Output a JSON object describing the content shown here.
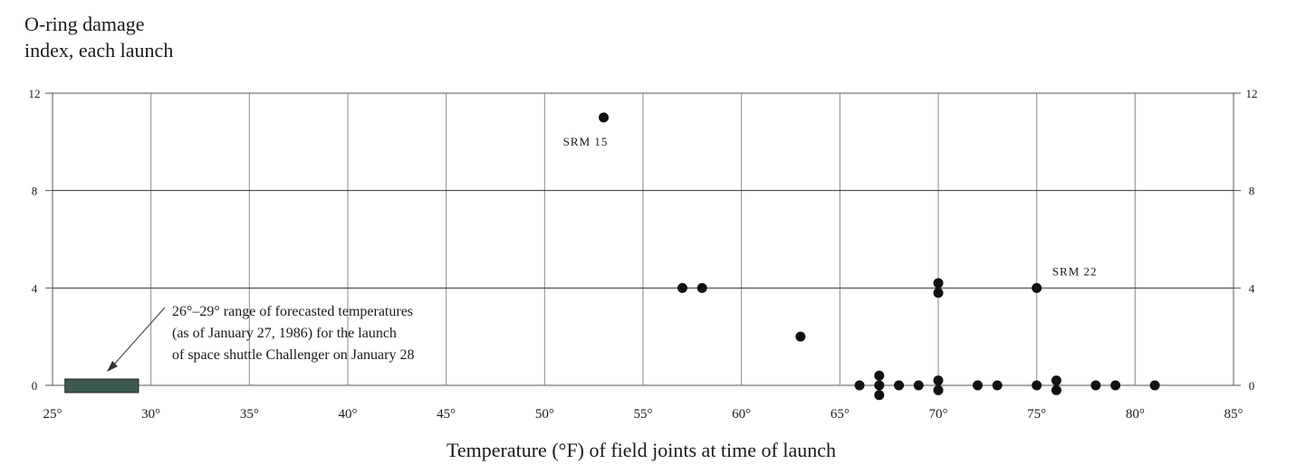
{
  "chart_data": {
    "type": "scatter",
    "title_lines": [
      "O-ring damage",
      "index, each launch"
    ],
    "xlabel": "Temperature (°F) of field joints at time of launch",
    "xlim": [
      25,
      85
    ],
    "ylim": [
      0,
      12
    ],
    "x_ticks": [
      25,
      30,
      35,
      40,
      45,
      50,
      55,
      60,
      65,
      70,
      75,
      80,
      85
    ],
    "x_tick_labels": [
      "25°",
      "30°",
      "35°",
      "40°",
      "45°",
      "50°",
      "55°",
      "60°",
      "65°",
      "70°",
      "75°",
      "80°",
      "85°"
    ],
    "y_ticks": [
      0,
      4,
      8,
      12
    ],
    "y_tick_labels": [
      "0",
      "4",
      "8",
      "12"
    ],
    "grid": true,
    "points": [
      {
        "x": 53,
        "y": 11
      },
      {
        "x": 57,
        "y": 4
      },
      {
        "x": 58,
        "y": 4
      },
      {
        "x": 63,
        "y": 2
      },
      {
        "x": 66,
        "y": 0
      },
      {
        "x": 67,
        "y": 0.4
      },
      {
        "x": 67,
        "y": 0
      },
      {
        "x": 67,
        "y": -0.4
      },
      {
        "x": 68,
        "y": 0
      },
      {
        "x": 69,
        "y": 0
      },
      {
        "x": 70,
        "y": 4.2
      },
      {
        "x": 70,
        "y": 3.8
      },
      {
        "x": 70,
        "y": 0.2
      },
      {
        "x": 70,
        "y": -0.2
      },
      {
        "x": 72,
        "y": 0
      },
      {
        "x": 73,
        "y": 0
      },
      {
        "x": 75,
        "y": 4
      },
      {
        "x": 75,
        "y": 0
      },
      {
        "x": 76,
        "y": 0.2
      },
      {
        "x": 76,
        "y": -0.2
      },
      {
        "x": 78,
        "y": 0
      },
      {
        "x": 79,
        "y": 0
      },
      {
        "x": 81,
        "y": 0
      }
    ],
    "point_labels": [
      {
        "text": "SRM 15",
        "x": 53,
        "y": 11
      },
      {
        "text": "SRM 22",
        "x": 75,
        "y": 4
      }
    ],
    "forecast_range": {
      "x_from": 26,
      "x_to": 29,
      "color": "#3d5a4e"
    },
    "annotation_lines": [
      "26°–29° range of forecasted temperatures",
      "(as of January 27, 1986) for the launch",
      "of space shuttle Challenger on January 28"
    ]
  }
}
